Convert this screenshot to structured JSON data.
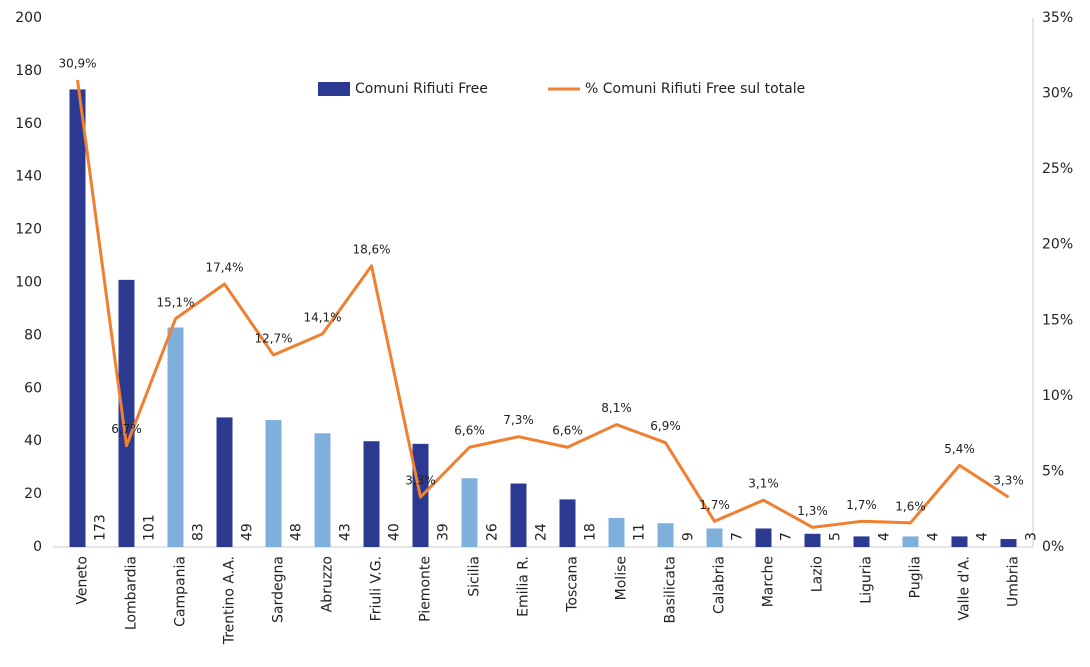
{
  "chart_data": {
    "type": "bar-line",
    "categories": [
      "Veneto",
      "Lombardia",
      "Campania",
      "Trentino A.A.",
      "Sardegna",
      "Abruzzo",
      "Friuli V.G.",
      "Piemonte",
      "Sicilia",
      "Emilia R.",
      "Toscana",
      "Molise",
      "Basilicata",
      "Calabria",
      "Marche",
      "Lazio",
      "Liguria",
      "Puglia",
      "Valle d'A.",
      "Umbria"
    ],
    "series": [
      {
        "name": "Comuni Rifiuti Free",
        "type": "bar",
        "color": "#2b3990",
        "colors": [
          "#2b3990",
          "#2b3990",
          "#7fb0dc",
          "#2b3990",
          "#7fb0dc",
          "#7fb0dc",
          "#2b3990",
          "#2b3990",
          "#7fb0dc",
          "#2b3990",
          "#2b3990",
          "#7fb0dc",
          "#7fb0dc",
          "#7fb0dc",
          "#2b3990",
          "#2b3990",
          "#2b3990",
          "#7fb0dc",
          "#2b3990",
          "#2b3990"
        ],
        "values": [
          173,
          101,
          83,
          49,
          48,
          43,
          40,
          39,
          26,
          24,
          18,
          11,
          9,
          7,
          7,
          5,
          4,
          4,
          4,
          3
        ]
      },
      {
        "name": "% Comuni Rifiuti Free sul totale",
        "type": "line",
        "axis": "y2",
        "color": "#f07f30",
        "values": [
          30.9,
          6.7,
          15.1,
          17.4,
          12.7,
          14.1,
          18.6,
          3.3,
          6.6,
          7.3,
          6.6,
          8.1,
          6.9,
          1.7,
          3.1,
          1.3,
          1.7,
          1.6,
          5.4,
          3.3
        ],
        "value_labels": [
          "30,9%",
          "6,7%",
          "15,1%",
          "17,4%",
          "12,7%",
          "14,1%",
          "18,6%",
          "3,3%",
          "6,6%",
          "7,3%",
          "6,6%",
          "8,1%",
          "6,9%",
          "1,7%",
          "3,1%",
          "1,3%",
          "1,7%",
          "1,6%",
          "5,4%",
          "3,3%"
        ]
      }
    ],
    "ylim": [
      0,
      200
    ],
    "yticks": [
      0,
      20,
      40,
      60,
      80,
      100,
      120,
      140,
      160,
      180,
      200
    ],
    "y2lim": [
      0,
      35
    ],
    "y2ticks": [
      {
        "value": 0,
        "label": "0%"
      },
      {
        "value": 5,
        "label": "5%"
      },
      {
        "value": 10,
        "label": "10%"
      },
      {
        "value": 15,
        "label": "15%"
      },
      {
        "value": 20,
        "label": "20%"
      },
      {
        "value": 25,
        "label": "25%"
      },
      {
        "value": 30,
        "label": "30%"
      },
      {
        "value": 35,
        "label": "35%"
      }
    ],
    "grid": false
  }
}
